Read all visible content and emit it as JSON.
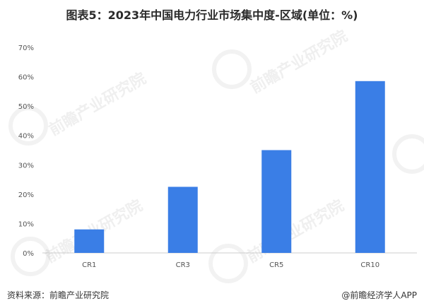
{
  "title": "图表5：2023年中国电力行业市场集中度-区域(单位：%)",
  "source": "资料来源：前瞻产业研究院",
  "credit": "@前瞻经济学人APP",
  "watermark_text": "前瞻产业研究院",
  "colors": {
    "bar": "#3a7ee6",
    "axis": "#cccccc",
    "tick_text": "#555555"
  },
  "chart_data": {
    "type": "bar",
    "categories": [
      "CR1",
      "CR3",
      "CR5",
      "CR10"
    ],
    "values": [
      8,
      22.5,
      35,
      58.5
    ],
    "ylim": [
      0,
      70
    ],
    "yticks": [
      0,
      10,
      20,
      30,
      40,
      50,
      60,
      70
    ],
    "ytick_labels": [
      "0%",
      "10%",
      "20%",
      "30%",
      "40%",
      "50%",
      "60%",
      "70%"
    ],
    "xlabel": "",
    "ylabel": "",
    "grid": false,
    "legend": "none"
  }
}
